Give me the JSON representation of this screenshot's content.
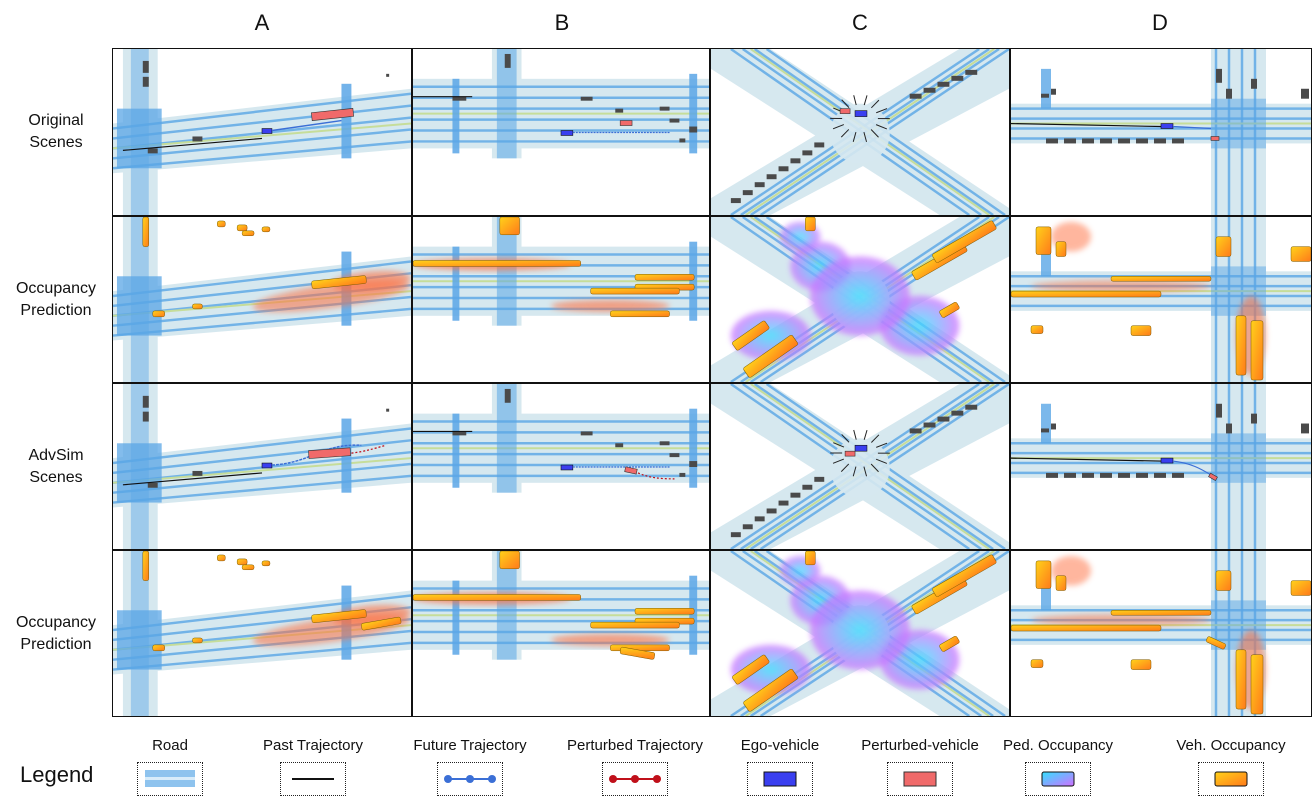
{
  "columns": [
    "A",
    "B",
    "C",
    "D"
  ],
  "rows": [
    {
      "line1": "Original",
      "line2": "Scenes",
      "kind": "scene"
    },
    {
      "line1": "Occupancy",
      "line2": "Prediction",
      "kind": "occ"
    },
    {
      "line1": "AdvSim",
      "line2": "Scenes",
      "kind": "adv"
    },
    {
      "line1": "Occupancy",
      "line2": "Prediction",
      "kind": "advocc"
    }
  ],
  "legend": {
    "title": "Legend",
    "items": [
      {
        "label": "Road",
        "icon": "road-icon"
      },
      {
        "label": "Past Trajectory",
        "icon": "past-trajectory-icon"
      },
      {
        "label": "Future Trajectory",
        "icon": "future-trajectory-icon"
      },
      {
        "label": "Perturbed Trajectory",
        "icon": "perturbed-trajectory-icon"
      },
      {
        "label": "Ego-vehicle",
        "icon": "ego-vehicle-icon"
      },
      {
        "label": "Perturbed-vehicle",
        "icon": "perturbed-vehicle-icon"
      },
      {
        "label": "Ped. Occupancy",
        "icon": "ped-occupancy-icon"
      },
      {
        "label": "Veh. Occupancy",
        "icon": "veh-occupancy-icon"
      }
    ]
  },
  "colors": {
    "road": "#5aa6e6",
    "lane_center": "#c6dd9a",
    "road_area": "#d6e8ef",
    "past": "#111111",
    "future": "#3b6fd6",
    "perturbed": "#c0101a",
    "ego": "#3a3ff0",
    "perturbed_vehicle": "#f06a6a",
    "parked": "#4a4a4a",
    "ped_occ_from": "#33e0ff",
    "ped_occ_to": "#d070ff",
    "veh_occ_from": "#ffd21a",
    "veh_occ_to": "#ff7a1a"
  }
}
